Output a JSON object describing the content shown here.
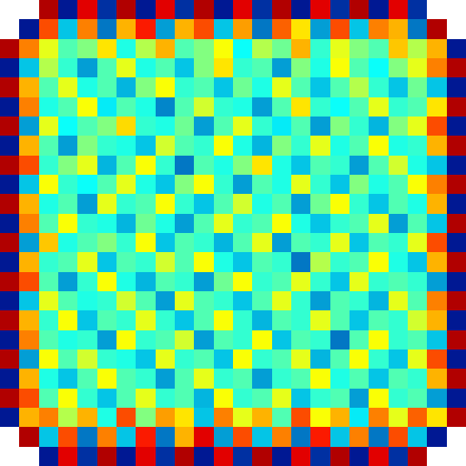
{
  "chart_data": {
    "type": "heatmap",
    "color": "Jet",
    "zlim": [
      0,
      1
    ],
    "tick_labels": false,
    "cells": [
      [
        null,
        null,
        0.95,
        0.05,
        0.9,
        0.1,
        0.95,
        0.05,
        0.9,
        0.1,
        0.95,
        0.05,
        0.9,
        0.1,
        0.95,
        0.05,
        0.9,
        0.1,
        0.95,
        0.05,
        0.9,
        0.1,
        null,
        null
      ],
      [
        null,
        0.05,
        0.8,
        0.3,
        0.75,
        0.2,
        0.7,
        0.85,
        0.25,
        0.7,
        0.8,
        0.3,
        0.72,
        0.2,
        0.78,
        0.65,
        0.25,
        0.8,
        0.3,
        0.75,
        0.7,
        0.2,
        0.95,
        null
      ],
      [
        0.95,
        0.75,
        0.6,
        0.45,
        0.5,
        0.65,
        0.4,
        0.55,
        0.7,
        0.45,
        0.5,
        0.62,
        0.38,
        0.55,
        0.48,
        0.7,
        0.42,
        0.6,
        0.5,
        0.45,
        0.68,
        0.55,
        0.7,
        0.05
      ],
      [
        0.05,
        0.3,
        0.55,
        0.42,
        0.25,
        0.45,
        0.6,
        0.4,
        0.45,
        0.3,
        0.5,
        0.65,
        0.42,
        0.45,
        0.25,
        0.5,
        0.4,
        0.62,
        0.45,
        0.38,
        0.5,
        0.6,
        0.75,
        0.95
      ],
      [
        0.95,
        0.7,
        0.45,
        0.6,
        0.4,
        0.45,
        0.28,
        0.5,
        0.62,
        0.42,
        0.45,
        0.3,
        0.48,
        0.4,
        0.6,
        0.45,
        0.3,
        0.45,
        0.55,
        0.42,
        0.3,
        0.48,
        0.3,
        0.05
      ],
      [
        0.05,
        0.75,
        0.4,
        0.45,
        0.62,
        0.35,
        0.45,
        0.4,
        0.22,
        0.45,
        0.58,
        0.42,
        0.4,
        0.25,
        0.45,
        0.65,
        0.42,
        0.38,
        0.45,
        0.6,
        0.42,
        0.45,
        0.65,
        0.95
      ],
      [
        0.95,
        0.25,
        0.6,
        0.38,
        0.45,
        0.5,
        0.66,
        0.42,
        0.4,
        0.48,
        0.25,
        0.45,
        0.6,
        0.42,
        0.35,
        0.45,
        0.25,
        0.5,
        0.42,
        0.28,
        0.5,
        0.6,
        0.8,
        0.05
      ],
      [
        0.05,
        0.7,
        0.45,
        0.25,
        0.5,
        0.42,
        0.4,
        0.3,
        0.58,
        0.45,
        0.42,
        0.62,
        0.4,
        0.28,
        0.5,
        0.42,
        0.6,
        0.4,
        0.45,
        0.62,
        0.4,
        0.42,
        0.7,
        0.95
      ],
      [
        0.95,
        0.8,
        0.42,
        0.5,
        0.6,
        0.28,
        0.45,
        0.62,
        0.42,
        0.2,
        0.45,
        0.4,
        0.5,
        0.65,
        0.4,
        0.3,
        0.45,
        0.42,
        0.25,
        0.45,
        0.58,
        0.4,
        0.3,
        0.05
      ],
      [
        0.05,
        0.3,
        0.62,
        0.42,
        0.38,
        0.45,
        0.6,
        0.4,
        0.3,
        0.5,
        0.62,
        0.42,
        0.25,
        0.45,
        0.4,
        0.6,
        0.42,
        0.3,
        0.5,
        0.4,
        0.45,
        0.62,
        0.75,
        0.95
      ],
      [
        0.95,
        0.7,
        0.4,
        0.45,
        0.25,
        0.6,
        0.42,
        0.45,
        0.62,
        0.42,
        0.3,
        0.45,
        0.58,
        0.4,
        0.45,
        0.25,
        0.48,
        0.62,
        0.42,
        0.3,
        0.45,
        0.4,
        0.7,
        0.05
      ],
      [
        0.05,
        0.75,
        0.45,
        0.62,
        0.42,
        0.4,
        0.28,
        0.48,
        0.4,
        0.25,
        0.45,
        0.6,
        0.42,
        0.45,
        0.62,
        0.4,
        0.3,
        0.42,
        0.45,
        0.6,
        0.25,
        0.45,
        0.3,
        0.95
      ],
      [
        0.95,
        0.25,
        0.68,
        0.4,
        0.45,
        0.5,
        0.42,
        0.62,
        0.3,
        0.45,
        0.42,
        0.28,
        0.45,
        0.6,
        0.25,
        0.45,
        0.42,
        0.6,
        0.3,
        0.45,
        0.42,
        0.6,
        0.8,
        0.05
      ],
      [
        0.05,
        0.7,
        0.42,
        0.45,
        0.6,
        0.3,
        0.45,
        0.42,
        0.58,
        0.45,
        0.62,
        0.4,
        0.3,
        0.45,
        0.42,
        0.2,
        0.55,
        0.42,
        0.45,
        0.62,
        0.4,
        0.3,
        0.7,
        0.95
      ],
      [
        0.95,
        0.8,
        0.45,
        0.25,
        0.42,
        0.62,
        0.4,
        0.28,
        0.45,
        0.42,
        0.25,
        0.48,
        0.62,
        0.42,
        0.45,
        0.6,
        0.42,
        0.3,
        0.6,
        0.42,
        0.45,
        0.42,
        0.25,
        0.05
      ],
      [
        0.05,
        0.3,
        0.6,
        0.45,
        0.4,
        0.42,
        0.58,
        0.45,
        0.25,
        0.6,
        0.45,
        0.42,
        0.3,
        0.45,
        0.6,
        0.42,
        0.25,
        0.45,
        0.42,
        0.28,
        0.6,
        0.45,
        0.75,
        0.95
      ],
      [
        0.95,
        0.7,
        0.42,
        0.62,
        0.3,
        0.45,
        0.42,
        0.6,
        0.42,
        0.3,
        0.45,
        0.62,
        0.42,
        0.28,
        0.45,
        0.42,
        0.6,
        0.45,
        0.3,
        0.45,
        0.42,
        0.58,
        0.7,
        0.05
      ],
      [
        0.05,
        0.75,
        0.45,
        0.4,
        0.42,
        0.25,
        0.62,
        0.42,
        0.45,
        0.58,
        0.25,
        0.45,
        0.42,
        0.62,
        0.3,
        0.45,
        0.42,
        0.2,
        0.45,
        0.62,
        0.42,
        0.45,
        0.3,
        0.95
      ],
      [
        0.95,
        0.25,
        0.62,
        0.45,
        0.58,
        0.42,
        0.4,
        0.3,
        0.6,
        0.42,
        0.45,
        0.3,
        0.62,
        0.42,
        0.45,
        0.6,
        0.28,
        0.45,
        0.62,
        0.42,
        0.3,
        0.6,
        0.8,
        0.05
      ],
      [
        0.05,
        0.7,
        0.4,
        0.3,
        0.45,
        0.62,
        0.45,
        0.42,
        0.25,
        0.45,
        0.6,
        0.42,
        0.45,
        0.25,
        0.42,
        0.45,
        0.62,
        0.4,
        0.45,
        0.3,
        0.45,
        0.42,
        0.7,
        0.95
      ],
      [
        0.95,
        0.8,
        0.45,
        0.62,
        0.42,
        0.3,
        0.45,
        0.6,
        0.42,
        0.45,
        0.28,
        0.62,
        0.42,
        0.45,
        0.6,
        0.3,
        0.42,
        0.45,
        0.25,
        0.62,
        0.42,
        0.45,
        0.25,
        0.05
      ],
      [
        0.05,
        0.7,
        0.75,
        0.55,
        0.7,
        0.4,
        0.8,
        0.5,
        0.72,
        0.65,
        0.3,
        0.75,
        0.6,
        0.7,
        0.45,
        0.8,
        0.62,
        0.7,
        0.35,
        0.75,
        0.6,
        0.78,
        0.65,
        0.95
      ],
      [
        null,
        0.95,
        0.3,
        0.8,
        0.2,
        0.75,
        0.3,
        0.85,
        0.2,
        0.7,
        0.9,
        0.25,
        0.8,
        0.3,
        0.75,
        0.2,
        0.85,
        0.3,
        0.75,
        0.2,
        0.8,
        0.3,
        0.05,
        null
      ],
      [
        null,
        null,
        0.05,
        0.9,
        0.1,
        0.95,
        0.05,
        0.9,
        0.1,
        0.95,
        0.05,
        0.9,
        0.1,
        0.95,
        0.05,
        0.9,
        0.1,
        0.95,
        0.05,
        0.9,
        0.1,
        0.95,
        null,
        null
      ]
    ]
  }
}
